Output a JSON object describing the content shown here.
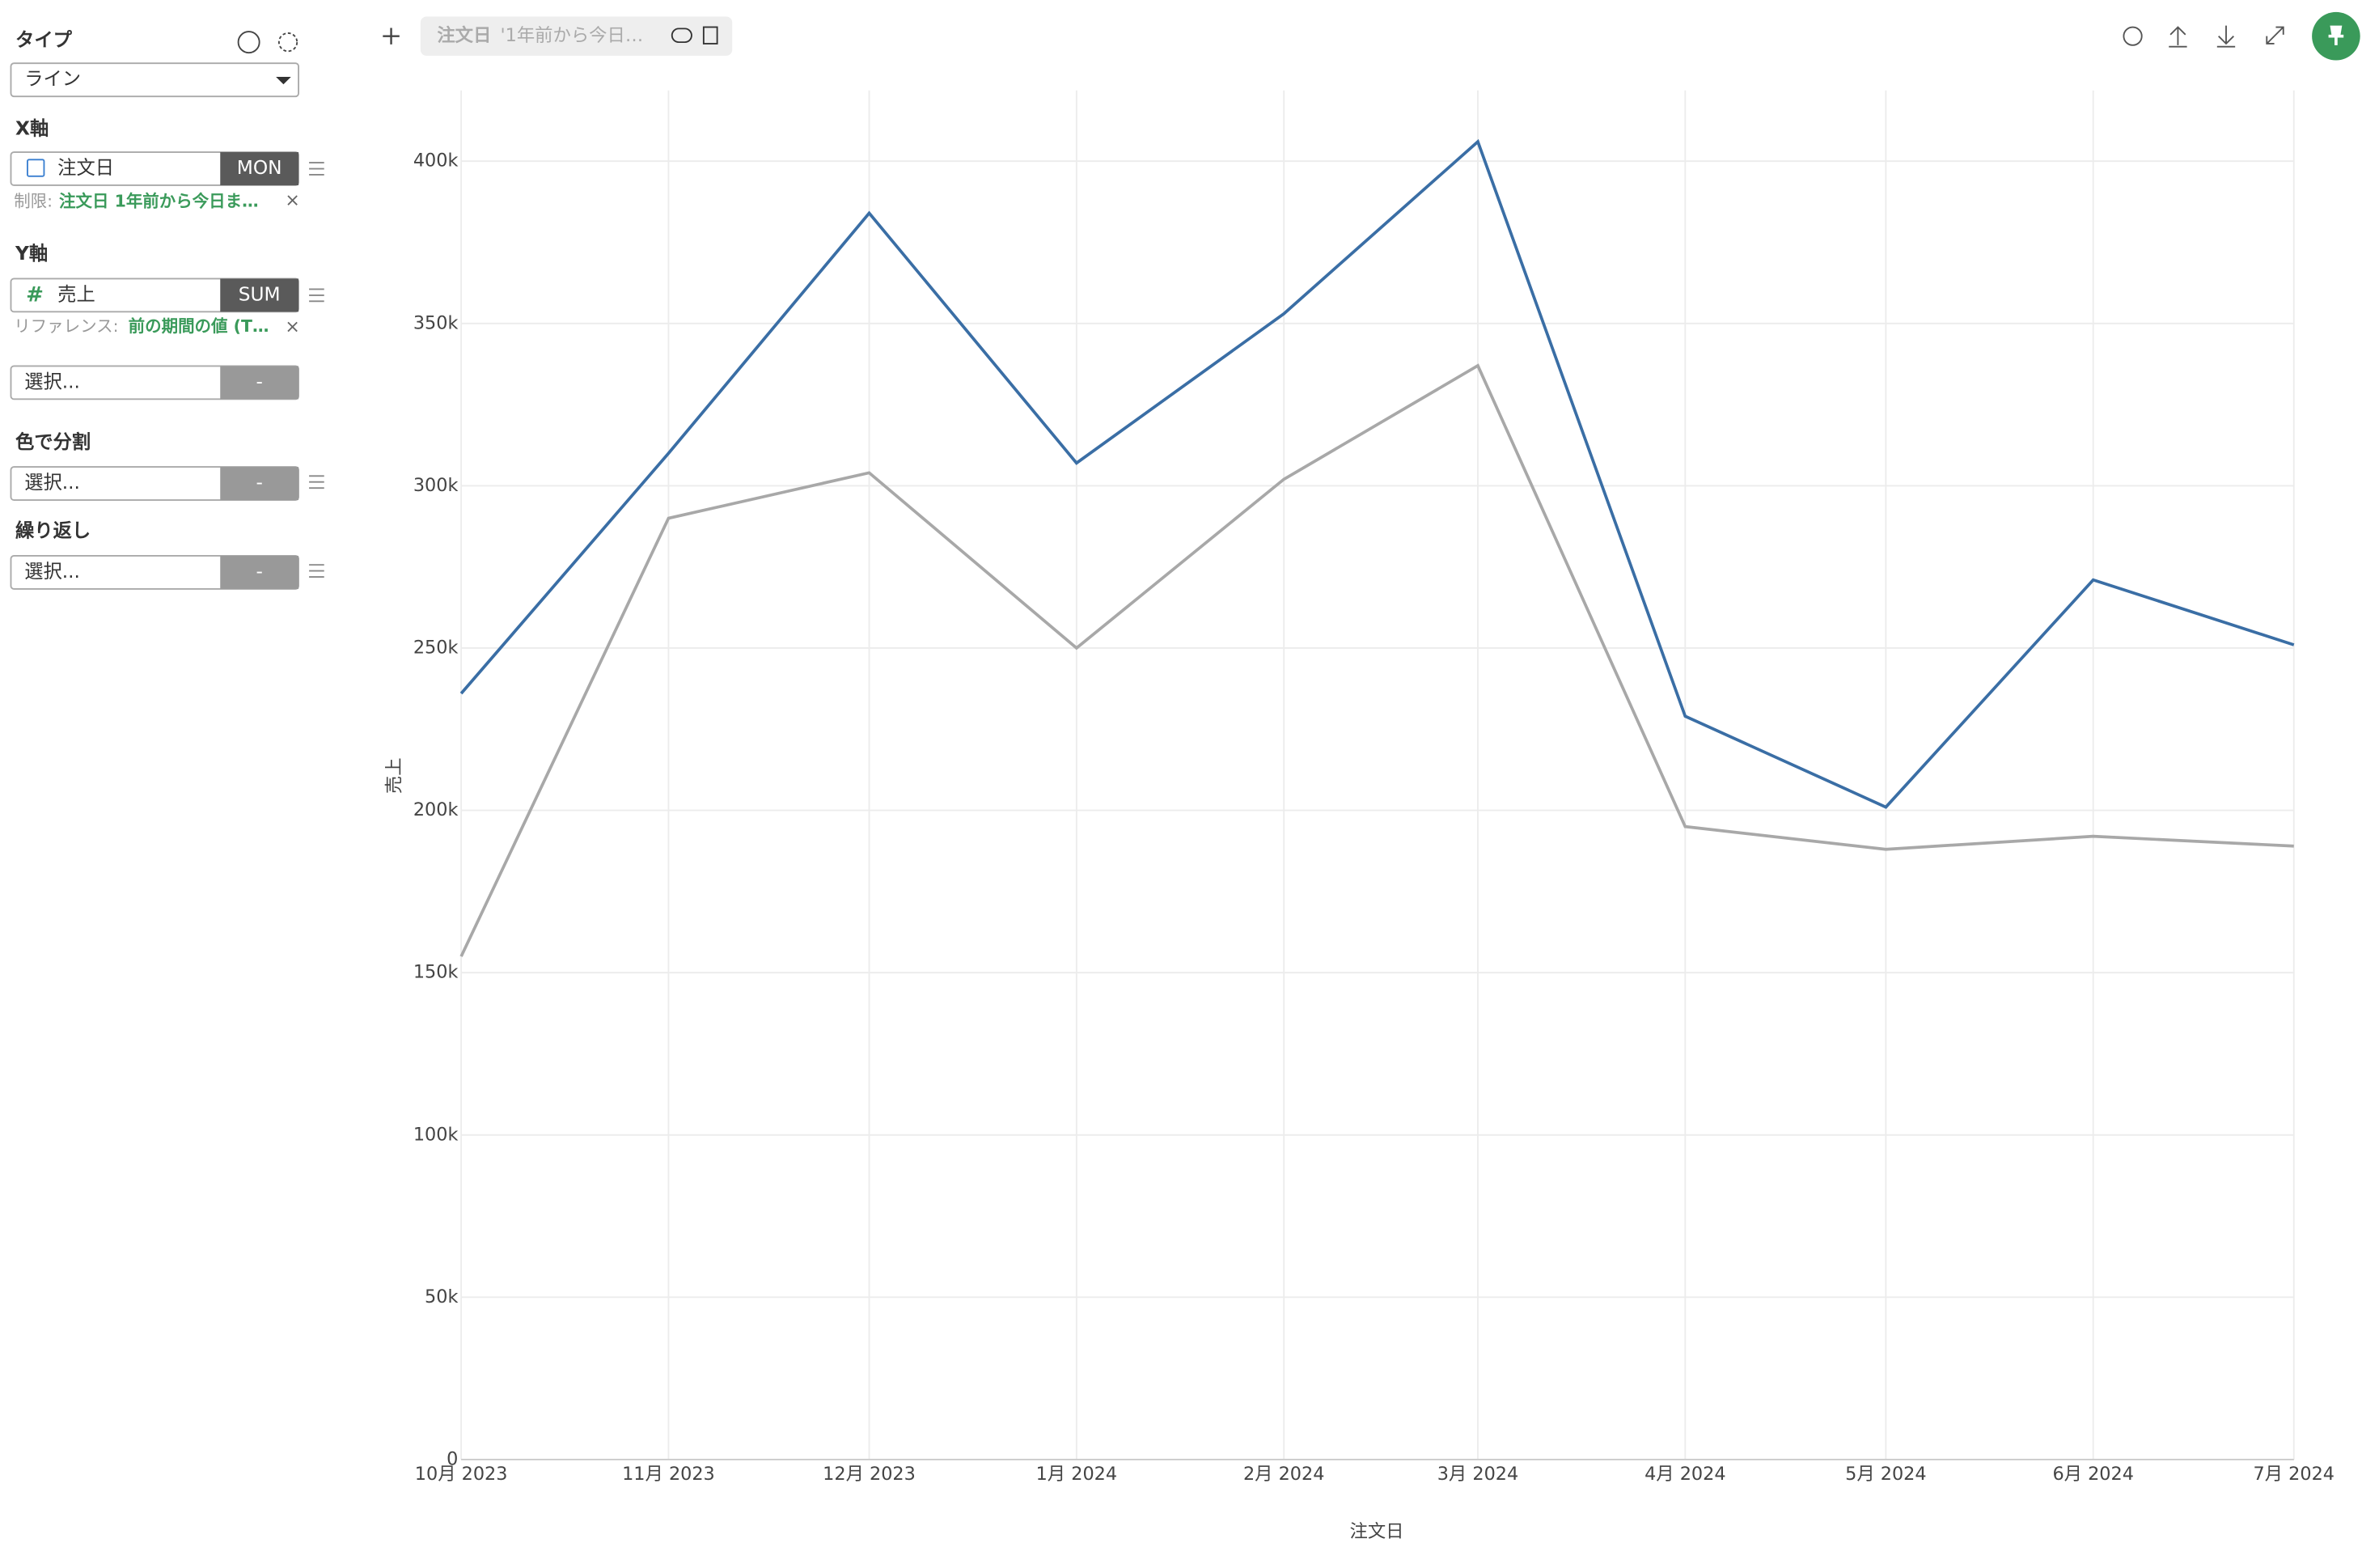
{
  "sidebar": {
    "type_label": "タイプ",
    "type_value": "ライン",
    "x_label": "X軸",
    "x_field": "注文日",
    "x_agg": "MON",
    "x_limit_label": "制限:",
    "x_limit_value": "注文日 1年前から今日ま…",
    "y_label": "Y軸",
    "y_field": "売上",
    "y_agg": "SUM",
    "y_ref_label": "リファレンス:",
    "y_ref_value": "前の期間の値 (T…",
    "extra_field": "選択...",
    "extra_btn": "-",
    "color_label": "色で分割",
    "color_field": "選択...",
    "color_btn": "-",
    "repeat_label": "繰り返し",
    "repeat_field": "選択...",
    "repeat_btn": "-"
  },
  "toolbar": {
    "filter_name": "注文日",
    "filter_value": "'1年前から今日…"
  },
  "chart_data": {
    "type": "line",
    "x_label": "注文日",
    "y_label": "売上",
    "x": [
      "2023-10",
      "2023-11",
      "2023-12",
      "2024-01",
      "2024-02",
      "2024-03",
      "2024-04",
      "2024-05",
      "2024-06",
      "2024-07"
    ],
    "series": [
      {
        "color": "#3a6ea5",
        "values": [
          236000,
          310000,
          384000,
          307000,
          353000,
          406000,
          229000,
          201000,
          271000,
          251000
        ]
      },
      {
        "color": "#a8a8a8",
        "values": [
          155000,
          290000,
          304000,
          250000,
          302000,
          337000,
          195000,
          188000,
          192000,
          189000
        ]
      }
    ],
    "xlim": [
      "2023-10",
      "2024-07"
    ],
    "xticks": [
      {
        "value": "2023-10",
        "label": "10月 2023"
      },
      {
        "value": "2023-11",
        "label": "11月 2023"
      },
      {
        "value": "2023-12",
        "label": "12月 2023"
      },
      {
        "value": "2024-01",
        "label": "1月 2024"
      },
      {
        "value": "2024-02",
        "label": "2月 2024"
      },
      {
        "value": "2024-03",
        "label": "3月 2024"
      },
      {
        "value": "2024-04",
        "label": "4月 2024"
      },
      {
        "value": "2024-05",
        "label": "5月 2024"
      },
      {
        "value": "2024-06",
        "label": "6月 2024"
      },
      {
        "value": "2024-07",
        "label": "7月 2024"
      }
    ],
    "ylim": [
      0,
      400000
    ],
    "yticks": [
      0,
      {
        "value": 50000,
        "label": "50k"
      },
      {
        "value": 100000,
        "label": "100k"
      },
      {
        "value": 150000,
        "label": "150k"
      },
      {
        "value": 200000,
        "label": "200k"
      },
      {
        "value": 250000,
        "label": "250k"
      },
      {
        "value": 300000,
        "label": "300k"
      },
      {
        "value": 350000,
        "label": "350k"
      },
      {
        "value": 400000,
        "label": "400k"
      }
    ],
    "grid": true
  }
}
